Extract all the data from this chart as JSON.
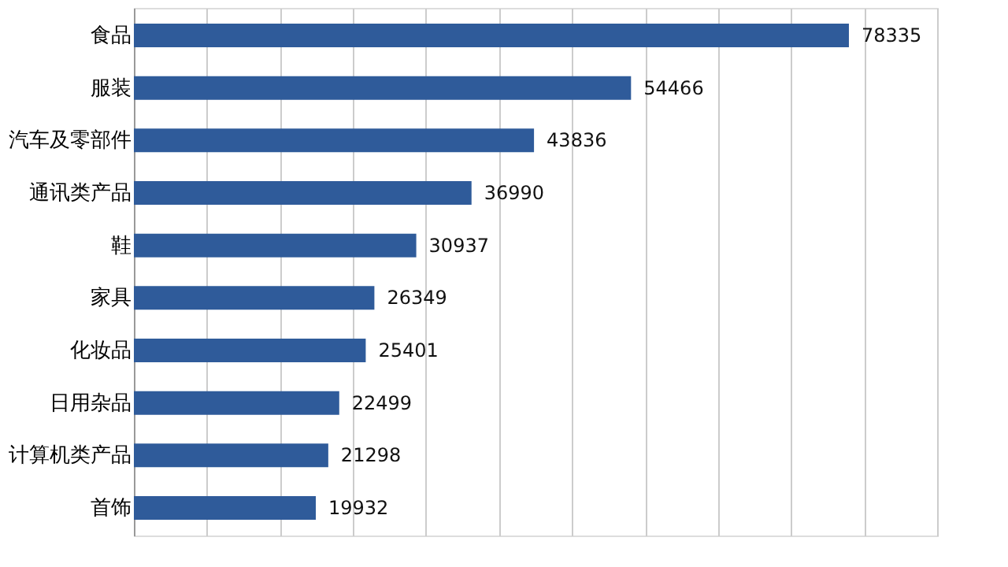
{
  "chart_data": {
    "type": "bar",
    "orientation": "horizontal",
    "categories": [
      "食品",
      "服装",
      "汽车及零部件",
      "通讯类产品",
      "鞋",
      "家具",
      "化妆品",
      "日用杂品",
      "计算机类产品",
      "首饰"
    ],
    "values": [
      78335,
      54466,
      43836,
      36990,
      30937,
      26349,
      25401,
      22499,
      21298,
      19932
    ],
    "color": "#2f5b9a",
    "xlim": [
      0,
      88000
    ],
    "xticks": [
      {
        "value": 0,
        "label": null
      },
      {
        "value": 8000,
        "label": null
      },
      {
        "value": 16000,
        "label": null
      },
      {
        "value": 24000,
        "label": null
      },
      {
        "value": 32000,
        "label": null
      },
      {
        "value": 40000,
        "label": null
      },
      {
        "value": 48000,
        "label": null
      },
      {
        "value": 56000,
        "label": null
      },
      {
        "value": 64000,
        "label": null
      },
      {
        "value": 72000,
        "label": null
      },
      {
        "value": 80000,
        "label": null
      },
      {
        "value": 88000,
        "label": null
      }
    ],
    "grid": "x",
    "data_labels": true,
    "tick_labels": "y"
  }
}
